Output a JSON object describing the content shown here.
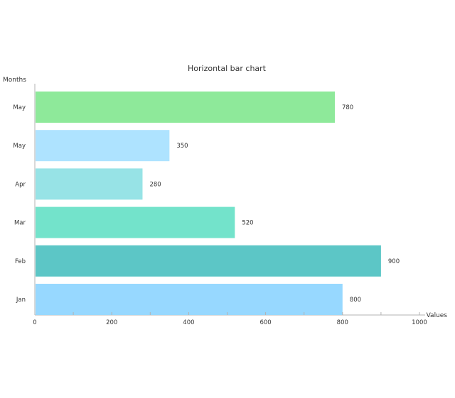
{
  "chart_data": {
    "type": "bar",
    "orientation": "horizontal",
    "title": "Horizontal bar chart",
    "xlabel": "Values",
    "ylabel": "Months",
    "xlim": [
      0,
      1000
    ],
    "x_ticks": [
      0,
      200,
      400,
      600,
      800,
      1000
    ],
    "grid": false,
    "legend": "none",
    "categories": [
      "May",
      "May",
      "Apr",
      "Mar",
      "Feb",
      "Jan"
    ],
    "values": [
      780,
      350,
      280,
      520,
      900,
      800
    ],
    "colors": [
      "#8ee99a",
      "#aee3ff",
      "#97e3e6",
      "#73e3cb",
      "#5cc6c6",
      "#97d8ff"
    ]
  }
}
